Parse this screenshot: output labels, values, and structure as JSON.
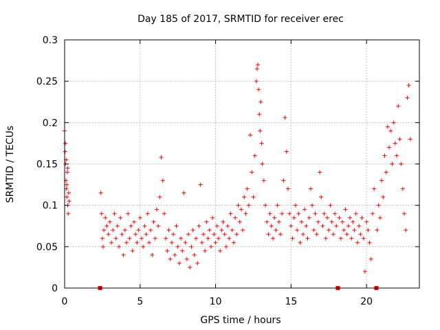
{
  "chart_data": {
    "type": "scatter",
    "title": "Day 185 of 2017, SRMTID for receiver erec",
    "xlabel": "GPS time / hours",
    "ylabel": "SRMTID / TECUs",
    "xlim": [
      0,
      23.5
    ],
    "ylim": [
      0,
      0.3
    ],
    "xticks": [
      0,
      5,
      10,
      15,
      20
    ],
    "xtick_labels": [
      "0",
      "5",
      "10",
      "15",
      "20"
    ],
    "yticks": [
      0,
      0.05,
      0.1,
      0.15,
      0.2,
      0.25,
      0.3
    ],
    "ytick_labels": [
      "0",
      "0.05",
      "0.1",
      "0.15",
      "0.2",
      "0.25",
      "0.3"
    ],
    "grid": true,
    "marker": "+",
    "color": "#ff0000",
    "data_gap_markers_x": [
      2.35,
      18.1,
      20.65
    ],
    "series": [
      {
        "name": "SRMTID",
        "x": [
          0.0,
          0.03,
          0.06,
          0.09,
          0.12,
          0.15,
          0.18,
          0.21,
          0.24,
          0.27,
          0.3,
          0.05,
          0.1,
          0.15,
          0.2,
          2.4,
          2.45,
          2.5,
          2.55,
          2.6,
          2.7,
          2.8,
          2.9,
          3.0,
          3.1,
          3.2,
          3.3,
          3.4,
          3.5,
          3.6,
          3.7,
          3.8,
          3.9,
          4.0,
          4.1,
          4.2,
          4.3,
          4.4,
          4.5,
          4.6,
          4.7,
          4.8,
          4.9,
          5.0,
          5.1,
          5.2,
          5.3,
          5.4,
          5.5,
          5.6,
          5.7,
          5.8,
          5.9,
          6.0,
          6.1,
          6.2,
          6.3,
          6.4,
          6.5,
          6.6,
          6.7,
          6.8,
          6.9,
          7.0,
          7.1,
          7.2,
          7.3,
          7.4,
          7.5,
          7.6,
          7.7,
          7.8,
          7.9,
          8.0,
          8.1,
          8.2,
          8.3,
          8.4,
          8.5,
          8.6,
          8.7,
          8.8,
          8.9,
          9.0,
          9.1,
          9.2,
          9.3,
          9.4,
          9.5,
          9.6,
          9.7,
          9.8,
          9.9,
          10.0,
          10.1,
          10.2,
          10.3,
          10.4,
          10.5,
          10.6,
          10.7,
          10.8,
          10.9,
          11.0,
          11.1,
          11.2,
          11.3,
          11.4,
          11.5,
          11.6,
          11.7,
          11.8,
          11.9,
          12.0,
          12.1,
          12.2,
          12.3,
          12.4,
          12.5,
          12.6,
          12.7,
          12.75,
          12.8,
          12.85,
          12.9,
          12.95,
          13.0,
          13.05,
          13.1,
          13.2,
          13.3,
          13.4,
          13.5,
          13.6,
          13.7,
          13.8,
          13.9,
          14.0,
          14.1,
          14.2,
          14.3,
          14.4,
          14.5,
          14.6,
          14.7,
          14.8,
          14.9,
          15.0,
          15.1,
          15.2,
          15.3,
          15.4,
          15.5,
          15.6,
          15.7,
          15.8,
          15.9,
          16.0,
          16.1,
          16.2,
          16.3,
          16.4,
          16.5,
          16.6,
          16.7,
          16.8,
          16.9,
          17.0,
          17.1,
          17.2,
          17.3,
          17.4,
          17.5,
          17.6,
          17.7,
          17.8,
          17.9,
          18.0,
          18.2,
          18.3,
          18.4,
          18.5,
          18.6,
          18.7,
          18.8,
          18.9,
          19.0,
          19.1,
          19.2,
          19.3,
          19.4,
          19.5,
          19.6,
          19.7,
          19.8,
          19.9,
          20.0,
          20.1,
          20.2,
          20.3,
          20.4,
          20.5,
          20.7,
          20.8,
          20.9,
          21.0,
          21.1,
          21.2,
          21.3,
          21.4,
          21.5,
          21.6,
          21.7,
          21.8,
          21.9,
          22.0,
          22.1,
          22.2,
          22.3,
          22.4,
          22.5,
          22.6,
          22.7,
          22.8,
          22.9
        ],
        "y": [
          0.19,
          0.165,
          0.15,
          0.13,
          0.12,
          0.11,
          0.14,
          0.1,
          0.09,
          0.115,
          0.105,
          0.175,
          0.155,
          0.125,
          0.145,
          0.115,
          0.09,
          0.06,
          0.05,
          0.07,
          0.085,
          0.075,
          0.065,
          0.08,
          0.055,
          0.07,
          0.09,
          0.06,
          0.075,
          0.05,
          0.085,
          0.065,
          0.04,
          0.07,
          0.055,
          0.09,
          0.06,
          0.075,
          0.045,
          0.08,
          0.065,
          0.055,
          0.07,
          0.085,
          0.06,
          0.05,
          0.075,
          0.065,
          0.09,
          0.055,
          0.07,
          0.04,
          0.08,
          0.06,
          0.095,
          0.075,
          0.11,
          0.158,
          0.13,
          0.09,
          0.06,
          0.045,
          0.07,
          0.035,
          0.055,
          0.065,
          0.04,
          0.075,
          0.05,
          0.03,
          0.06,
          0.045,
          0.115,
          0.055,
          0.035,
          0.065,
          0.025,
          0.05,
          0.07,
          0.04,
          0.06,
          0.03,
          0.075,
          0.125,
          0.055,
          0.065,
          0.045,
          0.08,
          0.06,
          0.07,
          0.05,
          0.085,
          0.065,
          0.055,
          0.075,
          0.06,
          0.045,
          0.07,
          0.08,
          0.065,
          0.05,
          0.075,
          0.06,
          0.09,
          0.07,
          0.055,
          0.085,
          0.065,
          0.1,
          0.08,
          0.095,
          0.07,
          0.11,
          0.09,
          0.12,
          0.1,
          0.185,
          0.14,
          0.11,
          0.16,
          0.25,
          0.265,
          0.27,
          0.24,
          0.21,
          0.19,
          0.225,
          0.175,
          0.15,
          0.13,
          0.1,
          0.08,
          0.065,
          0.09,
          0.075,
          0.06,
          0.085,
          0.07,
          0.1,
          0.08,
          0.065,
          0.09,
          0.13,
          0.206,
          0.165,
          0.12,
          0.09,
          0.075,
          0.06,
          0.085,
          0.1,
          0.07,
          0.09,
          0.055,
          0.08,
          0.065,
          0.095,
          0.075,
          0.06,
          0.085,
          0.12,
          0.1,
          0.07,
          0.09,
          0.065,
          0.08,
          0.14,
          0.11,
          0.075,
          0.09,
          0.06,
          0.085,
          0.07,
          0.1,
          0.08,
          0.065,
          0.09,
          0.075,
          0.085,
          0.06,
          0.08,
          0.07,
          0.095,
          0.065,
          0.075,
          0.085,
          0.06,
          0.08,
          0.07,
          0.09,
          0.055,
          0.075,
          0.065,
          0.085,
          0.06,
          0.02,
          0.08,
          0.07,
          0.055,
          0.035,
          0.09,
          0.12,
          0.07,
          0.1,
          0.085,
          0.13,
          0.11,
          0.16,
          0.14,
          0.195,
          0.17,
          0.19,
          0.15,
          0.2,
          0.175,
          0.16,
          0.22,
          0.18,
          0.15,
          0.12,
          0.09,
          0.07,
          0.23,
          0.245,
          0.18
        ]
      }
    ]
  }
}
